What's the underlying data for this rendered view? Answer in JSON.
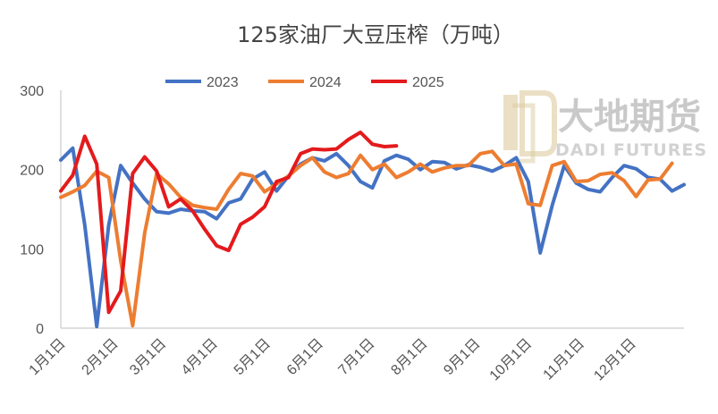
{
  "watermark": {
    "cn": "大地期货",
    "en": "DADI FUTURES"
  },
  "chart_data": {
    "type": "line",
    "title": "125家油厂大豆压榨（万吨）",
    "xlabel": "",
    "ylabel": "",
    "ylim": [
      0,
      300
    ],
    "yticks": [
      0,
      100,
      200,
      300
    ],
    "xlim": [
      0,
      52
    ],
    "x_tick_labels": [
      "1月1日",
      "2月1日",
      "3月1日",
      "4月1日",
      "5月1日",
      "6月1日",
      "7月1日",
      "8月1日",
      "9月1日",
      "10月1日",
      "11月1日",
      "12月1日"
    ],
    "x_tick_weeks": [
      0,
      4.4,
      8.4,
      12.7,
      17.1,
      21.5,
      25.8,
      30.2,
      34.6,
      38.9,
      43.3,
      47.6
    ],
    "grid": false,
    "legend_position": "top",
    "series": [
      {
        "name": "2023",
        "color": "#4472c4",
        "values": [
          212,
          227,
          130,
          2,
          130,
          205,
          183,
          163,
          147,
          145,
          150,
          148,
          147,
          138,
          158,
          163,
          188,
          197,
          173,
          192,
          207,
          215,
          211,
          220,
          205,
          185,
          177,
          211,
          218,
          213,
          200,
          210,
          209,
          201,
          206,
          203,
          198,
          205,
          215,
          185,
          95,
          155,
          205,
          183,
          175,
          172,
          190,
          205,
          201,
          190,
          188,
          173,
          181
        ]
      },
      {
        "name": "2024",
        "color": "#ed7d31",
        "values": [
          165,
          172,
          180,
          198,
          190,
          85,
          3,
          120,
          195,
          182,
          165,
          155,
          152,
          150,
          175,
          195,
          192,
          172,
          182,
          192,
          205,
          215,
          197,
          190,
          195,
          218,
          200,
          207,
          190,
          197,
          207,
          197,
          202,
          205,
          205,
          220,
          223,
          205,
          207,
          157,
          155,
          205,
          210,
          185,
          186,
          194,
          196,
          186,
          166,
          187,
          188,
          208
        ]
      },
      {
        "name": "2025",
        "color": "#e41a1c",
        "values": [
          173,
          193,
          242,
          207,
          20,
          47,
          195,
          216,
          198,
          153,
          163,
          148,
          125,
          104,
          98,
          131,
          140,
          153,
          185,
          190,
          220,
          226,
          225,
          226,
          238,
          247,
          232,
          229,
          230
        ]
      }
    ]
  }
}
